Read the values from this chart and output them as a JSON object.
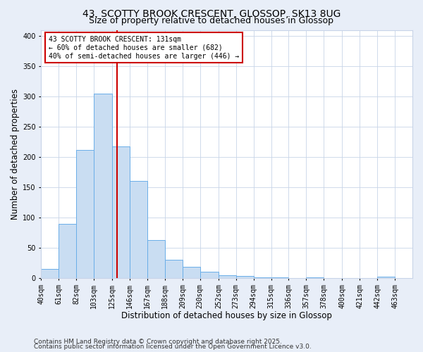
{
  "title1": "43, SCOTTY BROOK CRESCENT, GLOSSOP, SK13 8UG",
  "title2": "Size of property relative to detached houses in Glossop",
  "xlabel": "Distribution of detached houses by size in Glossop",
  "ylabel": "Number of detached properties",
  "bin_labels": [
    "40sqm",
    "61sqm",
    "82sqm",
    "103sqm",
    "125sqm",
    "146sqm",
    "167sqm",
    "188sqm",
    "209sqm",
    "230sqm",
    "252sqm",
    "273sqm",
    "294sqm",
    "315sqm",
    "336sqm",
    "357sqm",
    "378sqm",
    "400sqm",
    "421sqm",
    "442sqm",
    "463sqm"
  ],
  "bin_edges": [
    40,
    61,
    82,
    103,
    125,
    146,
    167,
    188,
    209,
    230,
    252,
    273,
    294,
    315,
    336,
    357,
    378,
    400,
    421,
    442,
    463
  ],
  "bar_heights": [
    15,
    90,
    212,
    305,
    218,
    160,
    63,
    30,
    18,
    10,
    5,
    3,
    1,
    1,
    0,
    1,
    0,
    0,
    0,
    2
  ],
  "bar_color": "#c9ddf2",
  "bar_edge_color": "#6aaee8",
  "property_size": 131,
  "vline_color": "#cc0000",
  "annotation_title": "43 SCOTTY BROOK CRESCENT: 131sqm",
  "annotation_line1": "← 60% of detached houses are smaller (682)",
  "annotation_line2": "40% of semi-detached houses are larger (446) →",
  "annotation_box_color": "#cc0000",
  "ylim": [
    0,
    410
  ],
  "footer1": "Contains HM Land Registry data © Crown copyright and database right 2025.",
  "footer2": "Contains public sector information licensed under the Open Government Licence v3.0.",
  "bg_color": "#e8eef8",
  "plot_bg_color": "#ffffff",
  "grid_color": "#c8d4e8",
  "title_fontsize": 10,
  "title2_fontsize": 9,
  "axis_label_fontsize": 8.5,
  "tick_fontsize": 7,
  "footer_fontsize": 6.5
}
